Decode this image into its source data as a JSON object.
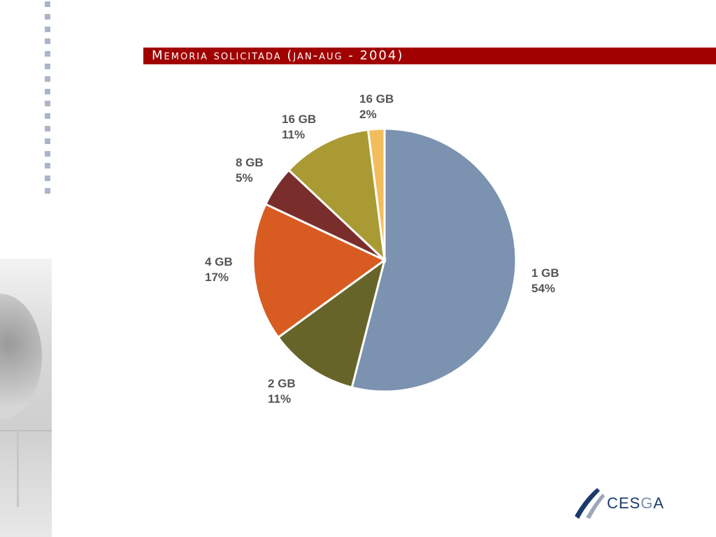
{
  "slide": {
    "title": "Memoria solicitada (jan-aug - 2004)",
    "logo_text_a": "CES",
    "logo_text_b": "G",
    "logo_text_c": "A"
  },
  "chart_data": {
    "type": "pie",
    "title": "Memoria solicitada (jan-aug - 2004)",
    "slices": [
      {
        "label": "1 GB",
        "value": 54,
        "display": "54%",
        "color": "#7b93b0"
      },
      {
        "label": "2 GB",
        "value": 11,
        "display": "11%",
        "color": "#676429"
      },
      {
        "label": "4 GB",
        "value": 17,
        "display": "17%",
        "color": "#d85b22"
      },
      {
        "label": "8 GB",
        "value": 5,
        "display": "5%",
        "color": "#7a2e2c"
      },
      {
        "label": "16 GB",
        "value": 11,
        "display": "11%",
        "color": "#aa9a33"
      },
      {
        "label": "16 GB",
        "value": 2,
        "display": "2%",
        "color": "#f2bd5c"
      }
    ],
    "start": "12 o'clock",
    "direction": "clockwise"
  }
}
